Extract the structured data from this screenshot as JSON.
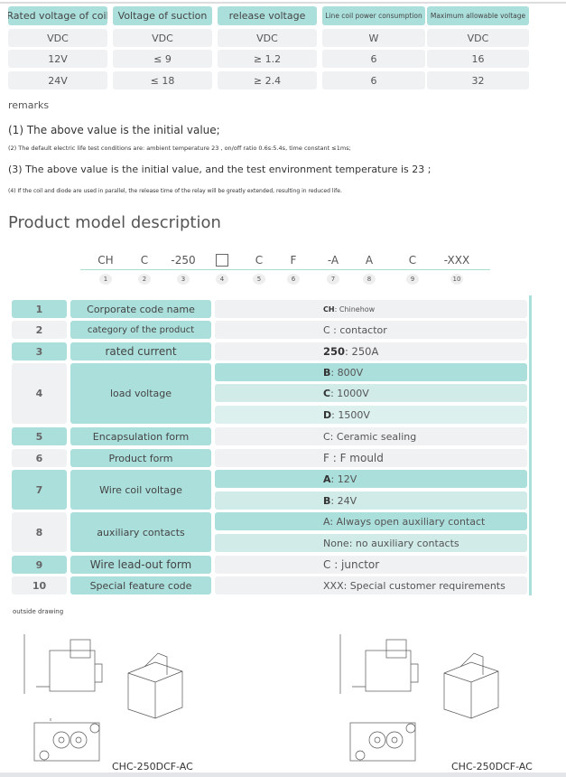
{
  "spec_table": {
    "headers": [
      "Rated voltage of coil",
      "Voltage of suction",
      "release voltage",
      "Line coil power consumption",
      "Maximum allowable voltage"
    ],
    "rows": [
      [
        "VDC",
        "VDC",
        "VDC",
        "W",
        "VDC"
      ],
      [
        "12V",
        "≤ 9",
        "≥ 1.2",
        "6",
        "16"
      ],
      [
        "24V",
        "≤ 18",
        "≥ 2.4",
        "6",
        "32"
      ]
    ]
  },
  "remarks": {
    "title": "remarks",
    "items": [
      "(1) The above value is the initial value;",
      "(2) The default electric life test conditions are: ambient temperature 23    , on/off ratio 0.6s:5.4s, time constant ≤1ms;",
      "(3) The above value is the initial value, and the test environment temperature is 23    ;",
      "(4) If the coil and diode are used in parallel, the release time of the relay will be greatly extended, resulting in reduced life."
    ]
  },
  "model": {
    "title": "Product model description",
    "codes": [
      "CH",
      "C",
      "-250",
      "□",
      "C",
      "F",
      "-A",
      "A",
      "C",
      "-XXX"
    ],
    "numbers": [
      "1",
      "2",
      "3",
      "4",
      "5",
      "6",
      "7",
      "8",
      "9",
      "10"
    ]
  },
  "model_table": [
    {
      "num": "1",
      "name": "Corporate code name",
      "options": [
        {
          "key": "CH",
          "val": ": Chinehow"
        }
      ]
    },
    {
      "num": "2",
      "name": "category of the product",
      "options": [
        {
          "key": "",
          "val": "C :  contactor"
        }
      ]
    },
    {
      "num": "3",
      "name": "rated current",
      "options": [
        {
          "key": "250",
          "val": ": 250A"
        }
      ]
    },
    {
      "num": "4",
      "name": "load voltage",
      "options": [
        {
          "key": "B",
          "val": ": 800V"
        },
        {
          "key": "C",
          "val": ": 1000V"
        },
        {
          "key": "D",
          "val": ": 1500V"
        }
      ]
    },
    {
      "num": "5",
      "name": "Encapsulation form",
      "options": [
        {
          "key": "",
          "val": "C: Ceramic sealing"
        }
      ]
    },
    {
      "num": "6",
      "name": "Product form",
      "options": [
        {
          "key": "",
          "val": "F :  F mould"
        }
      ]
    },
    {
      "num": "7",
      "name": "Wire coil voltage",
      "options": [
        {
          "key": "A",
          "val": ": 12V"
        },
        {
          "key": "B",
          "val": ": 24V"
        }
      ]
    },
    {
      "num": "8",
      "name": "auxiliary contacts",
      "options": [
        {
          "key": "",
          "val": "A: Always open auxiliary contact"
        },
        {
          "key": "",
          "val": "None: no auxiliary contacts"
        }
      ]
    },
    {
      "num": "9",
      "name": "Wire lead-out form",
      "options": [
        {
          "key": "",
          "val": "C :  junctor"
        }
      ]
    },
    {
      "num": "10",
      "name": "Special feature code",
      "options": [
        {
          "key": "",
          "val": "XXX: Special customer requirements"
        }
      ]
    }
  ],
  "drawing": {
    "title": "outside drawing",
    "captions": [
      "CHC-250DCF-AC",
      "CHC-250DCF-AC"
    ]
  }
}
